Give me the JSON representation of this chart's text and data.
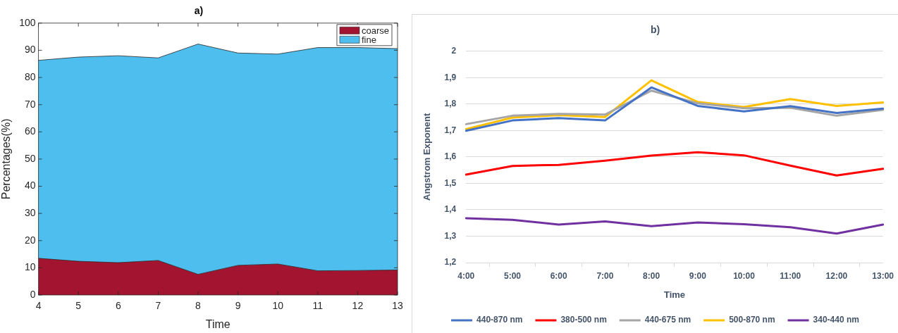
{
  "chart_data": [
    {
      "type": "area",
      "title": "a)",
      "xlabel": "Time",
      "ylabel": "Percentages(%)",
      "x": [
        4,
        5,
        6,
        7,
        8,
        9,
        10,
        11,
        12,
        13
      ],
      "xlim": [
        4,
        13
      ],
      "xticks": [
        4,
        5,
        6,
        7,
        8,
        9,
        10,
        11,
        12,
        13
      ],
      "ylim": [
        0,
        100
      ],
      "yticks": [
        0,
        10,
        20,
        30,
        40,
        50,
        60,
        70,
        80,
        90,
        100
      ],
      "stacked": true,
      "legend": "top right",
      "grid": false,
      "series": [
        {
          "name": "coarse",
          "color": "#a2142f",
          "values": [
            13.5,
            12.4,
            11.9,
            12.7,
            7.6,
            10.9,
            11.4,
            8.9,
            9.0,
            9.2
          ]
        },
        {
          "name": "fine",
          "color": "#4dbeee",
          "values": [
            72.8,
            75.1,
            76.1,
            74.5,
            84.7,
            78.1,
            77.2,
            82.1,
            82.0,
            81.4
          ]
        }
      ]
    },
    {
      "type": "line",
      "title": "b)",
      "xlabel": "Time",
      "ylabel": "Angstrom Exponent",
      "categories": [
        "4:00",
        "5:00",
        "6:00",
        "7:00",
        "8:00",
        "9:00",
        "10:00",
        "11:00",
        "12:00",
        "13:00"
      ],
      "ylim": [
        1.2,
        2
      ],
      "yticks": [
        {
          "value": 1.2,
          "label": "1,2"
        },
        {
          "value": 1.3,
          "label": "1,3"
        },
        {
          "value": 1.4,
          "label": "1,4"
        },
        {
          "value": 1.5,
          "label": "1,5"
        },
        {
          "value": 1.6,
          "label": "1,6"
        },
        {
          "value": 1.7,
          "label": "1,7"
        },
        {
          "value": 1.8,
          "label": "1,8"
        },
        {
          "value": 1.9,
          "label": "1,9"
        },
        2
      ],
      "grid": "y",
      "legend": "bottom",
      "series": [
        {
          "name": "440-870 nm",
          "color": "#4472c4",
          "values": [
            1.699,
            1.738,
            1.747,
            1.738,
            1.863,
            1.793,
            1.772,
            1.792,
            1.766,
            1.783
          ]
        },
        {
          "name": "380-500 nm",
          "color": "#ff0000",
          "values": [
            1.533,
            1.566,
            1.57,
            1.586,
            1.605,
            1.618,
            1.606,
            1.567,
            1.53,
            1.555
          ]
        },
        {
          "name": "440-675 nm",
          "color": "#a5a5a5",
          "values": [
            1.724,
            1.756,
            1.763,
            1.76,
            1.851,
            1.803,
            1.784,
            1.786,
            1.756,
            1.778
          ]
        },
        {
          "name": "500-870 nm",
          "color": "#ffc000",
          "values": [
            1.705,
            1.749,
            1.758,
            1.751,
            1.89,
            1.808,
            1.789,
            1.819,
            1.793,
            1.806
          ]
        },
        {
          "name": "340-440 nm",
          "color": "#7030a0",
          "values": [
            1.368,
            1.362,
            1.344,
            1.356,
            1.338,
            1.352,
            1.345,
            1.334,
            1.31,
            1.344
          ]
        }
      ]
    }
  ]
}
